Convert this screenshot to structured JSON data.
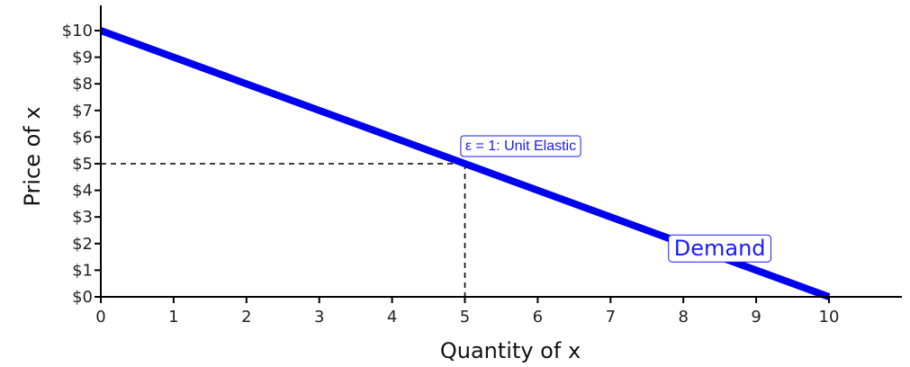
{
  "chart_data": {
    "type": "line",
    "xlabel": "Quantity of x",
    "ylabel": "Price of x",
    "xlim": [
      0,
      11
    ],
    "ylim": [
      0,
      11
    ],
    "x_ticks": [
      0,
      1,
      2,
      3,
      4,
      5,
      6,
      7,
      8,
      9,
      10
    ],
    "x_tick_labels": [
      "0",
      "1",
      "2",
      "3",
      "4",
      "5",
      "6",
      "7",
      "8",
      "9",
      "10"
    ],
    "y_ticks": [
      0,
      1,
      2,
      3,
      4,
      5,
      6,
      7,
      8,
      9,
      10
    ],
    "y_tick_labels": [
      "$0",
      "$1",
      "$2",
      "$3",
      "$4",
      "$5",
      "$6",
      "$7",
      "$8",
      "$9",
      "$10"
    ],
    "series": [
      {
        "name": "Demand",
        "x": [
          0,
          10
        ],
        "y": [
          10,
          0
        ],
        "color": "#0000ee"
      }
    ],
    "reference_point": {
      "x": 5,
      "y": 5,
      "label": "ε = 1: Unit Elastic"
    },
    "series_label": {
      "text": "Demand",
      "x": 8.5,
      "y": 1.85
    },
    "grid": false
  }
}
